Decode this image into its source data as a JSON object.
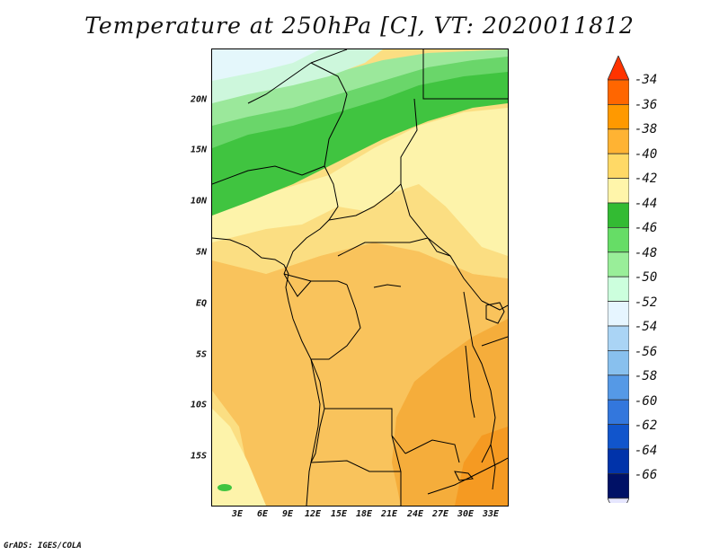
{
  "title": "Temperature at 250hPa [C], VT: 2020011812",
  "credit": "GrADS: IGES/COLA",
  "lat_labels": [
    "20N",
    "15N",
    "10N",
    "5N",
    "EQ",
    "5S",
    "10S",
    "15S"
  ],
  "lon_labels": [
    "3E",
    "6E",
    "9E",
    "12E",
    "15E",
    "18E",
    "21E",
    "24E",
    "27E",
    "30E",
    "33E"
  ],
  "colorbar": {
    "levels": [
      "-34",
      "-36",
      "-38",
      "-40",
      "-42",
      "-44",
      "-46",
      "-48",
      "-50",
      "-52",
      "-54",
      "-56",
      "-58",
      "-60",
      "-62",
      "-64",
      "-66"
    ],
    "colors": [
      "#ff3300",
      "#ff6600",
      "#ff9900",
      "#ffb333",
      "#ffd966",
      "#fff5aa",
      "#33bb33",
      "#66dd66",
      "#99ee99",
      "#ccffdd",
      "#e6f5ff",
      "#aad4f5",
      "#88c0ee",
      "#5599e6",
      "#3377dd",
      "#1155cc",
      "#0033aa",
      "#001166",
      "#e6e6ff"
    ]
  },
  "map_colors": {
    "c_n38": "#f5ad3b",
    "c_n40": "#f9c35c",
    "c_n42": "#fbde82",
    "c_n43": "#fdf3aa",
    "c_n44": "#40c440",
    "c_n46": "#6ad66a",
    "c_n48": "#9be89b",
    "c_n50": "#cdf7dc",
    "c_n52": "#e4f7fb"
  }
}
